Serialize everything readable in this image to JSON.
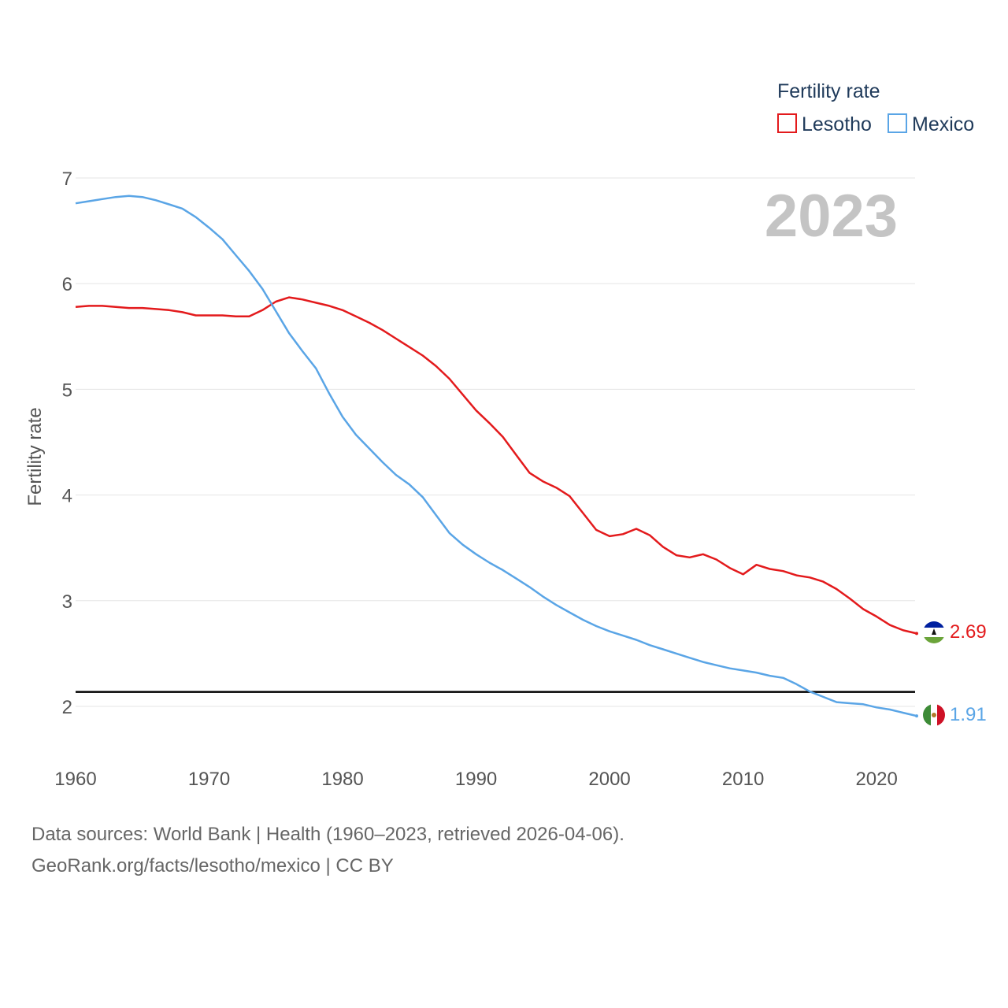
{
  "chart_data": {
    "type": "line",
    "title": "",
    "xlabel": "",
    "ylabel": "Fertility rate",
    "xlim": [
      1960,
      2023
    ],
    "ylim": [
      1.5,
      7
    ],
    "yticks": [
      2,
      3,
      4,
      5,
      6,
      7
    ],
    "xticks": [
      1960,
      1970,
      1980,
      1990,
      2000,
      2010,
      2020
    ],
    "year_label": "2023",
    "legend": {
      "title": "Fertility rate",
      "placement": "top-right"
    },
    "reference_line": {
      "value": 2.1,
      "color": "#000000"
    },
    "series": [
      {
        "name": "Lesotho",
        "color": "#e31a1c",
        "end_label": "2.69",
        "flag": "lesotho-flag",
        "x": [
          1960,
          1961,
          1962,
          1963,
          1964,
          1965,
          1966,
          1967,
          1968,
          1969,
          1970,
          1971,
          1972,
          1973,
          1974,
          1975,
          1976,
          1977,
          1978,
          1979,
          1980,
          1981,
          1982,
          1983,
          1984,
          1985,
          1986,
          1987,
          1988,
          1989,
          1990,
          1991,
          1992,
          1993,
          1994,
          1995,
          1996,
          1997,
          1998,
          1999,
          2000,
          2001,
          2002,
          2003,
          2004,
          2005,
          2006,
          2007,
          2008,
          2009,
          2010,
          2011,
          2012,
          2013,
          2014,
          2015,
          2016,
          2017,
          2018,
          2019,
          2020,
          2021,
          2022,
          2023
        ],
        "values": [
          5.78,
          5.79,
          5.79,
          5.78,
          5.77,
          5.77,
          5.76,
          5.75,
          5.73,
          5.7,
          5.7,
          5.7,
          5.69,
          5.69,
          5.75,
          5.83,
          5.87,
          5.85,
          5.82,
          5.79,
          5.75,
          5.69,
          5.63,
          5.56,
          5.48,
          5.4,
          5.32,
          5.22,
          5.1,
          4.95,
          4.8,
          4.68,
          4.55,
          4.38,
          4.21,
          4.13,
          4.07,
          3.99,
          3.83,
          3.67,
          3.61,
          3.63,
          3.68,
          3.62,
          3.51,
          3.43,
          3.41,
          3.44,
          3.39,
          3.31,
          3.25,
          3.34,
          3.3,
          3.28,
          3.24,
          3.22,
          3.18,
          3.11,
          3.02,
          2.92,
          2.85,
          2.77,
          2.72,
          2.69
        ]
      },
      {
        "name": "Mexico",
        "color": "#5aa5e6",
        "end_label": "1.91",
        "flag": "mexico-flag",
        "x": [
          1960,
          1961,
          1962,
          1963,
          1964,
          1965,
          1966,
          1967,
          1968,
          1969,
          1970,
          1971,
          1972,
          1973,
          1974,
          1975,
          1976,
          1977,
          1978,
          1979,
          1980,
          1981,
          1982,
          1983,
          1984,
          1985,
          1986,
          1987,
          1988,
          1989,
          1990,
          1991,
          1992,
          1993,
          1994,
          1995,
          1996,
          1997,
          1998,
          1999,
          2000,
          2001,
          2002,
          2003,
          2004,
          2005,
          2006,
          2007,
          2008,
          2009,
          2010,
          2011,
          2012,
          2013,
          2014,
          2015,
          2016,
          2017,
          2018,
          2019,
          2020,
          2021,
          2022,
          2023
        ],
        "values": [
          6.76,
          6.78,
          6.8,
          6.82,
          6.83,
          6.82,
          6.79,
          6.75,
          6.71,
          6.63,
          6.53,
          6.42,
          6.27,
          6.12,
          5.95,
          5.74,
          5.53,
          5.36,
          5.2,
          4.96,
          4.74,
          4.57,
          4.44,
          4.31,
          4.19,
          4.1,
          3.98,
          3.81,
          3.64,
          3.53,
          3.44,
          3.36,
          3.29,
          3.21,
          3.13,
          3.04,
          2.96,
          2.89,
          2.82,
          2.76,
          2.71,
          2.67,
          2.63,
          2.58,
          2.54,
          2.5,
          2.46,
          2.42,
          2.39,
          2.36,
          2.34,
          2.32,
          2.29,
          2.27,
          2.21,
          2.14,
          2.09,
          2.04,
          2.03,
          2.02,
          1.99,
          1.97,
          1.94,
          1.91
        ]
      }
    ]
  },
  "source": {
    "line1": "Data sources: World Bank | Health (1960–2023, retrieved 2026-04-06).",
    "line2": "GeoRank.org/facts/lesotho/mexico | CC BY"
  }
}
